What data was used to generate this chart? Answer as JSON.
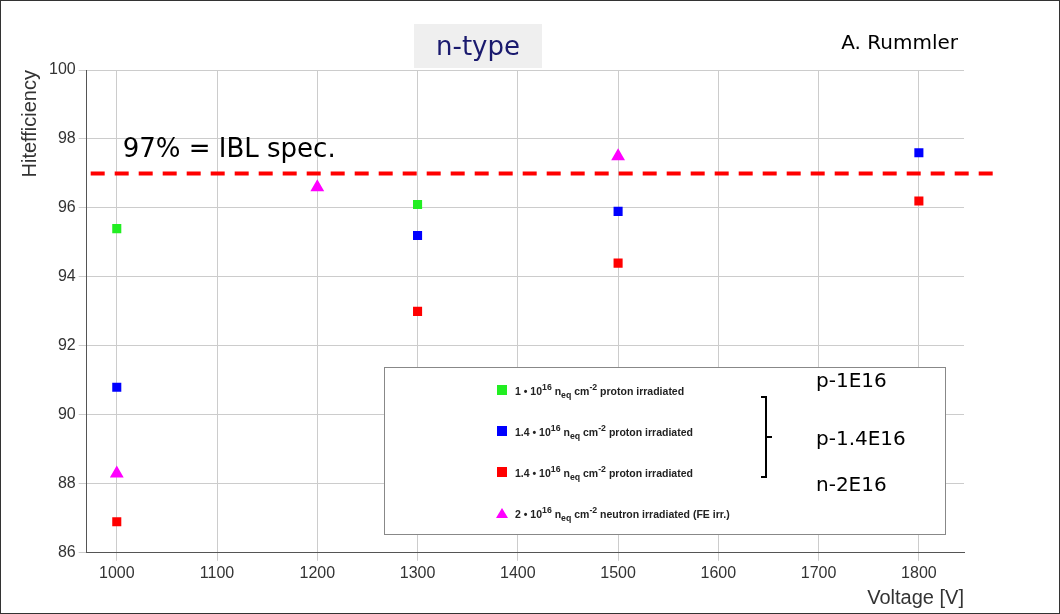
{
  "chart_data": {
    "type": "scatter",
    "title": "n-type",
    "xlabel": "Voltage [V]",
    "ylabel": "Hitefficiency",
    "xlim": [
      970,
      1845
    ],
    "ylim": [
      86,
      100
    ],
    "xticks": [
      1000,
      1100,
      1200,
      1300,
      1400,
      1500,
      1600,
      1700,
      1800
    ],
    "yticks": [
      86,
      88,
      90,
      92,
      94,
      96,
      98,
      100
    ],
    "grid": true,
    "legend": "bottom right",
    "series": [
      {
        "name": "1 • 10$^{16}$ n$_{eq}$ cm$^{-2}$ proton irradiated",
        "color": "#22ee22",
        "marker": "square",
        "x": [
          1000,
          1300
        ],
        "values": [
          95.4,
          96.1
        ]
      },
      {
        "name": "1.4 • 10$^{16}$ n$_{eq}$ cm$^{-2}$ proton irradiated",
        "color": "#0000ff",
        "marker": "square",
        "x": [
          1000,
          1300,
          1500,
          1800
        ],
        "values": [
          90.8,
          95.2,
          95.9,
          97.6
        ]
      },
      {
        "name": "1.4 • 10$^{16}$ n$_{eq}$ cm$^{-2}$ proton irradiated",
        "color": "#ff0000",
        "marker": "square",
        "x": [
          1000,
          1300,
          1500,
          1800
        ],
        "values": [
          86.9,
          93.0,
          94.4,
          96.2
        ]
      },
      {
        "name": "2 • 10$^{16}$ n$_{eq}$ cm$^{-2}$ neutron irradiated (FE irr.)",
        "color": "#ff00ff",
        "marker": "triangle",
        "x": [
          1000,
          1200,
          1500
        ],
        "values": [
          88.3,
          96.6,
          97.5
        ]
      }
    ],
    "ref_lines": [
      {
        "axis": "y",
        "value": 97,
        "label": "97% = IBL spec.",
        "color": "#ff0000",
        "line_style": "dashed"
      }
    ],
    "annotations": [
      "A. Rummler",
      "p-1E16",
      "p-1.4E16",
      "n-2E16"
    ]
  }
}
